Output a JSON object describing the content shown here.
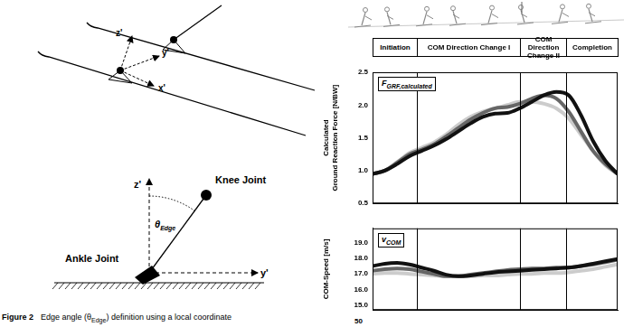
{
  "diagram": {
    "ski_axes": [
      "z'",
      "y'",
      "x'"
    ],
    "edge_angle": {
      "vertical_axis": "z'",
      "horizontal_axis": "y'",
      "upper_joint": "Knee Joint",
      "lower_joint": "Ankle Joint",
      "angle": {
        "symbol": "θ",
        "subscript": "Edge"
      }
    }
  },
  "caption": {
    "label": "Figure 2",
    "text": {
      "before": "Edge angle (θ",
      "subscript": "Edge",
      "after": ") definition using a local coordinate"
    }
  },
  "phase_header": {
    "phases": [
      "Initiation",
      "COM Direction Change I",
      "COM Direction Change II",
      "Completion"
    ],
    "boundaries": [
      18,
      60,
      79
    ]
  },
  "chart_data": [
    {
      "type": "line",
      "annotation": {
        "symbol": "F",
        "subscript": "GRF,calculated"
      },
      "y_label": [
        "Calculated",
        "Ground Reaction Force [N/BW]"
      ],
      "x": [
        0,
        5,
        10,
        15,
        20,
        25,
        30,
        35,
        40,
        45,
        50,
        55,
        60,
        65,
        70,
        75,
        80,
        85,
        90,
        95,
        100
      ],
      "xlim": [
        0,
        100
      ],
      "ylim": [
        0.5,
        2.5
      ],
      "yticks": [
        0.5,
        {
          "value": 1,
          "label": "1.0"
        },
        1.5,
        {
          "value": 2,
          "label": "2.0"
        },
        2.5
      ],
      "tick_labels": "y",
      "grid": false,
      "series": [
        {
          "color": "#111111",
          "values": [
            0.95,
            1.0,
            1.1,
            1.22,
            1.3,
            1.38,
            1.48,
            1.6,
            1.72,
            1.82,
            1.87,
            1.88,
            1.95,
            2.05,
            2.15,
            2.2,
            2.15,
            1.85,
            1.45,
            1.15,
            0.95
          ]
        },
        {
          "color": "#666666",
          "values": [
            0.95,
            1.0,
            1.12,
            1.25,
            1.32,
            1.4,
            1.52,
            1.65,
            1.78,
            1.88,
            1.95,
            1.97,
            2.02,
            2.1,
            2.15,
            2.1,
            1.9,
            1.6,
            1.3,
            1.1,
            0.95
          ]
        },
        {
          "color": "#cccccc",
          "values": [
            0.95,
            1.0,
            1.13,
            1.27,
            1.35,
            1.43,
            1.55,
            1.7,
            1.82,
            1.9,
            1.95,
            2.0,
            2.05,
            2.05,
            2.02,
            1.95,
            1.8,
            1.55,
            1.3,
            1.08,
            0.95
          ]
        }
      ]
    },
    {
      "type": "line",
      "annotation": {
        "symbol": "v",
        "subscript": "COM"
      },
      "y_label": [
        "COM-Speed [m/s]"
      ],
      "x": [
        0,
        5,
        10,
        15,
        20,
        25,
        30,
        35,
        40,
        45,
        50,
        55,
        60,
        65,
        70,
        75,
        80,
        85,
        90,
        95,
        100
      ],
      "xlim": [
        0,
        100
      ],
      "ylim": [
        14.7,
        19.9
      ],
      "yticks": [
        {
          "value": 15,
          "label": "15.0"
        },
        {
          "value": 16,
          "label": "16.0"
        },
        {
          "value": 17,
          "label": "17.0"
        },
        {
          "value": 18,
          "label": "18.0"
        },
        {
          "value": 19,
          "label": "19.0"
        }
      ],
      "tick_labels": "y",
      "grid": false,
      "series": [
        {
          "color": "#111111",
          "values": [
            17.5,
            17.65,
            17.7,
            17.6,
            17.4,
            17.2,
            16.95,
            16.85,
            16.9,
            17.0,
            17.1,
            17.15,
            17.2,
            17.25,
            17.3,
            17.35,
            17.4,
            17.5,
            17.65,
            17.8,
            17.95
          ]
        },
        {
          "color": "#666666",
          "values": [
            17.2,
            17.3,
            17.35,
            17.3,
            17.15,
            17.0,
            16.85,
            16.85,
            16.95,
            17.05,
            17.15,
            17.25,
            17.3,
            17.35,
            17.35,
            17.4,
            17.4,
            17.5,
            17.6,
            17.75,
            17.9
          ]
        },
        {
          "color": "#cccccc",
          "values": [
            17.0,
            17.05,
            17.05,
            17.0,
            16.95,
            16.9,
            16.85,
            16.85,
            16.85,
            16.9,
            16.9,
            16.95,
            17.0,
            17.0,
            17.05,
            17.05,
            17.1,
            17.2,
            17.3,
            17.45,
            17.6
          ]
        }
      ]
    }
  ],
  "partial_chart": {
    "yticks": [
      50
    ]
  }
}
